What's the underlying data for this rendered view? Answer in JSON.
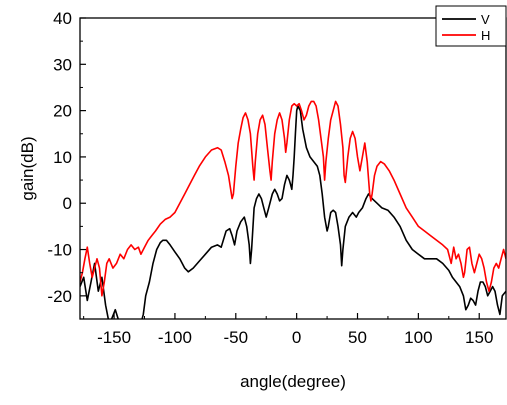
{
  "chart_data": {
    "type": "line",
    "title": "",
    "xlabel": "angle(degree)",
    "ylabel": "gain(dB)",
    "xlim": [
      -178,
      172
    ],
    "ylim": [
      -25,
      40
    ],
    "xticks": [
      -150,
      -100,
      -50,
      0,
      50,
      100,
      150
    ],
    "yticks": [
      -20,
      -10,
      0,
      10,
      20,
      30,
      40
    ],
    "xtick_labels": [
      "-150",
      "-100",
      "-50",
      "0",
      "50",
      "100",
      "150"
    ],
    "ytick_labels": [
      "-20",
      "-10",
      "0",
      "10",
      "20",
      "30",
      "40"
    ],
    "grid": false,
    "legend_position": "top-right",
    "series": [
      {
        "name": "V",
        "color": "#000000",
        "points": [
          [
            -178,
            -18
          ],
          [
            -175,
            -16
          ],
          [
            -172,
            -21
          ],
          [
            -169,
            -17
          ],
          [
            -166,
            -13
          ],
          [
            -163,
            -19
          ],
          [
            -160,
            -16
          ],
          [
            -157,
            -22
          ],
          [
            -154,
            -26
          ],
          [
            -152,
            -25
          ],
          [
            -149,
            -23
          ],
          [
            -146,
            -25.5
          ],
          [
            -143,
            -27
          ],
          [
            -129,
            -27
          ],
          [
            -126,
            -24
          ],
          [
            -124,
            -20
          ],
          [
            -121,
            -17
          ],
          [
            -118,
            -13
          ],
          [
            -115,
            -10
          ],
          [
            -112,
            -8.5
          ],
          [
            -110,
            -8
          ],
          [
            -107,
            -8
          ],
          [
            -104,
            -9
          ],
          [
            -100,
            -10.5
          ],
          [
            -96,
            -12
          ],
          [
            -92,
            -14
          ],
          [
            -89,
            -14.8
          ],
          [
            -85,
            -14
          ],
          [
            -80,
            -12.5
          ],
          [
            -75,
            -11
          ],
          [
            -70,
            -9.5
          ],
          [
            -65,
            -9
          ],
          [
            -62,
            -9.5
          ],
          [
            -58,
            -6
          ],
          [
            -55,
            -5.5
          ],
          [
            -53,
            -7
          ],
          [
            -51,
            -9
          ],
          [
            -49,
            -6
          ],
          [
            -46,
            -4
          ],
          [
            -43,
            -3
          ],
          [
            -41,
            -5
          ],
          [
            -39,
            -9
          ],
          [
            -38,
            -13
          ],
          [
            -37,
            -10
          ],
          [
            -35,
            -1
          ],
          [
            -33,
            1
          ],
          [
            -31,
            2
          ],
          [
            -29,
            1
          ],
          [
            -27,
            -1
          ],
          [
            -25,
            -3
          ],
          [
            -23,
            -1
          ],
          [
            -20,
            2
          ],
          [
            -18,
            3
          ],
          [
            -16,
            2
          ],
          [
            -14,
            0.5
          ],
          [
            -12,
            1
          ],
          [
            -10,
            4
          ],
          [
            -8,
            6
          ],
          [
            -6,
            5
          ],
          [
            -5,
            4
          ],
          [
            -4,
            3
          ],
          [
            -3,
            6
          ],
          [
            -2,
            10
          ],
          [
            -1,
            15
          ],
          [
            0,
            20
          ],
          [
            1,
            21
          ],
          [
            3,
            20
          ],
          [
            5,
            16
          ],
          [
            8,
            12
          ],
          [
            11,
            10
          ],
          [
            14,
            9
          ],
          [
            17,
            8
          ],
          [
            19,
            6
          ],
          [
            21,
            2
          ],
          [
            23,
            -3
          ],
          [
            25,
            -6
          ],
          [
            26,
            -5
          ],
          [
            28,
            -2
          ],
          [
            30,
            -1.5
          ],
          [
            32,
            -2
          ],
          [
            34,
            -5
          ],
          [
            36,
            -9
          ],
          [
            37,
            -13.5
          ],
          [
            38,
            -10
          ],
          [
            40,
            -5
          ],
          [
            43,
            -3
          ],
          [
            46,
            -2
          ],
          [
            49,
            -3
          ],
          [
            51,
            -2
          ],
          [
            54,
            -1
          ],
          [
            57,
            1
          ],
          [
            59,
            2
          ],
          [
            62,
            1
          ],
          [
            66,
            0
          ],
          [
            70,
            -1
          ],
          [
            75,
            -1.5
          ],
          [
            80,
            -3
          ],
          [
            85,
            -5
          ],
          [
            90,
            -8
          ],
          [
            95,
            -10
          ],
          [
            100,
            -11
          ],
          [
            105,
            -12
          ],
          [
            110,
            -12
          ],
          [
            115,
            -12
          ],
          [
            120,
            -13
          ],
          [
            125,
            -14.5
          ],
          [
            128,
            -16
          ],
          [
            131,
            -17
          ],
          [
            134,
            -18
          ],
          [
            137,
            -20
          ],
          [
            139,
            -23
          ],
          [
            141,
            -22
          ],
          [
            143,
            -20.5
          ],
          [
            145,
            -21
          ],
          [
            147,
            -22
          ],
          [
            149,
            -19
          ],
          [
            151,
            -17
          ],
          [
            153,
            -17
          ],
          [
            155,
            -18
          ],
          [
            157,
            -20
          ],
          [
            159,
            -19
          ],
          [
            161,
            -18
          ],
          [
            163,
            -19
          ],
          [
            165,
            -22
          ],
          [
            167,
            -24
          ],
          [
            169,
            -20
          ],
          [
            172,
            -19
          ]
        ]
      },
      {
        "name": "H",
        "color": "#ff0000",
        "points": [
          [
            -178,
            -17
          ],
          [
            -176,
            -15
          ],
          [
            -174,
            -12
          ],
          [
            -172,
            -9.5
          ],
          [
            -170,
            -13
          ],
          [
            -168,
            -16
          ],
          [
            -166,
            -14
          ],
          [
            -164,
            -12
          ],
          [
            -162,
            -14
          ],
          [
            -160,
            -20
          ],
          [
            -158,
            -17
          ],
          [
            -156,
            -13
          ],
          [
            -154,
            -12
          ],
          [
            -151,
            -14
          ],
          [
            -148,
            -13
          ],
          [
            -145,
            -11
          ],
          [
            -142,
            -12
          ],
          [
            -139,
            -10
          ],
          [
            -136,
            -9
          ],
          [
            -133,
            -10
          ],
          [
            -130,
            -9.5
          ],
          [
            -128,
            -11
          ],
          [
            -125,
            -9.5
          ],
          [
            -122,
            -8
          ],
          [
            -119,
            -7
          ],
          [
            -116,
            -6
          ],
          [
            -112,
            -4.5
          ],
          [
            -108,
            -3.5
          ],
          [
            -104,
            -3
          ],
          [
            -100,
            -2
          ],
          [
            -96,
            0
          ],
          [
            -92,
            2
          ],
          [
            -88,
            4
          ],
          [
            -84,
            6
          ],
          [
            -80,
            8
          ],
          [
            -75,
            10
          ],
          [
            -70,
            11.5
          ],
          [
            -65,
            12
          ],
          [
            -62,
            11.5
          ],
          [
            -59,
            9
          ],
          [
            -56,
            6
          ],
          [
            -53,
            1
          ],
          [
            -52,
            2
          ],
          [
            -50,
            8
          ],
          [
            -48,
            13
          ],
          [
            -46,
            16
          ],
          [
            -44,
            18.5
          ],
          [
            -42,
            19.5
          ],
          [
            -40,
            18
          ],
          [
            -38,
            15
          ],
          [
            -36,
            8
          ],
          [
            -35,
            5
          ],
          [
            -34,
            9
          ],
          [
            -32,
            15
          ],
          [
            -30,
            18
          ],
          [
            -28,
            19
          ],
          [
            -26,
            17
          ],
          [
            -24,
            12
          ],
          [
            -22,
            7
          ],
          [
            -21,
            5
          ],
          [
            -20,
            9
          ],
          [
            -18,
            15
          ],
          [
            -16,
            18
          ],
          [
            -14,
            19.5
          ],
          [
            -12,
            18
          ],
          [
            -10,
            14
          ],
          [
            -9,
            11
          ],
          [
            -8,
            13
          ],
          [
            -6,
            18
          ],
          [
            -4,
            21
          ],
          [
            -2,
            21.5
          ],
          [
            0,
            21
          ],
          [
            2,
            21.5
          ],
          [
            4,
            20
          ],
          [
            6,
            18
          ],
          [
            8,
            19
          ],
          [
            10,
            21
          ],
          [
            12,
            22
          ],
          [
            14,
            22
          ],
          [
            16,
            21
          ],
          [
            18,
            18
          ],
          [
            20,
            14
          ],
          [
            22,
            10
          ],
          [
            23,
            5
          ],
          [
            24,
            9
          ],
          [
            26,
            14
          ],
          [
            28,
            18
          ],
          [
            30,
            20
          ],
          [
            32,
            22
          ],
          [
            34,
            21
          ],
          [
            36,
            17
          ],
          [
            38,
            12
          ],
          [
            39,
            6
          ],
          [
            40,
            4.5
          ],
          [
            42,
            10
          ],
          [
            44,
            14
          ],
          [
            46,
            15.5
          ],
          [
            48,
            14
          ],
          [
            50,
            10
          ],
          [
            52,
            7
          ],
          [
            54,
            10
          ],
          [
            56,
            13
          ],
          [
            58,
            9
          ],
          [
            60,
            2
          ],
          [
            61,
            0.5
          ],
          [
            62,
            2
          ],
          [
            64,
            6
          ],
          [
            66,
            8
          ],
          [
            69,
            9
          ],
          [
            72,
            8.5
          ],
          [
            76,
            7
          ],
          [
            80,
            5
          ],
          [
            85,
            2
          ],
          [
            90,
            -1
          ],
          [
            95,
            -3
          ],
          [
            100,
            -5
          ],
          [
            105,
            -6
          ],
          [
            110,
            -7
          ],
          [
            115,
            -8
          ],
          [
            120,
            -9
          ],
          [
            124,
            -10
          ],
          [
            127,
            -13
          ],
          [
            129,
            -9.5
          ],
          [
            131,
            -12
          ],
          [
            133,
            -11
          ],
          [
            135,
            -13
          ],
          [
            137,
            -16
          ],
          [
            138,
            -15
          ],
          [
            140,
            -10
          ],
          [
            142,
            -9.5
          ],
          [
            144,
            -13
          ],
          [
            146,
            -15
          ],
          [
            148,
            -13
          ],
          [
            150,
            -11
          ],
          [
            152,
            -12
          ],
          [
            154,
            -14
          ],
          [
            156,
            -17
          ],
          [
            158,
            -19
          ],
          [
            160,
            -17
          ],
          [
            162,
            -14
          ],
          [
            164,
            -13
          ],
          [
            166,
            -14
          ],
          [
            168,
            -12
          ],
          [
            170,
            -10
          ],
          [
            172,
            -12
          ]
        ]
      }
    ]
  }
}
